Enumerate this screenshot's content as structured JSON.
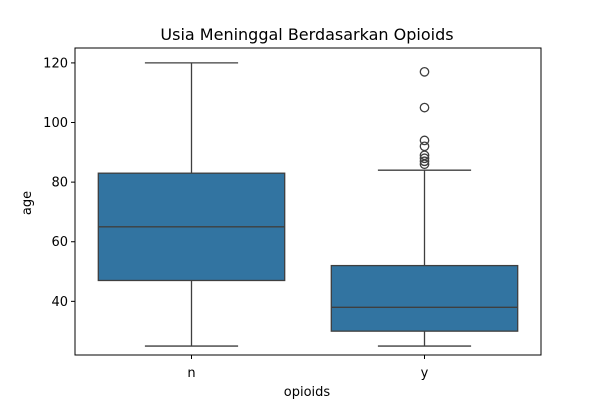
{
  "chart_data": {
    "type": "box",
    "title": "Usia Meninggal Berdasarkan Opioids",
    "xlabel": "opioids",
    "ylabel": "age",
    "categories": [
      "n",
      "y"
    ],
    "ylim": [
      22,
      125
    ],
    "yticks": [
      40,
      60,
      80,
      100,
      120
    ],
    "grid": false,
    "box_color": "#3274a1",
    "line_color": "#3f3f3f",
    "boxes": [
      {
        "category": "n",
        "whisker_low": 25,
        "q1": 47,
        "median": 65,
        "q3": 83,
        "whisker_high": 120,
        "outliers": []
      },
      {
        "category": "y",
        "whisker_low": 25,
        "q1": 30,
        "median": 38,
        "q3": 52,
        "whisker_high": 84,
        "outliers": [
          86,
          87,
          88,
          89,
          92,
          94,
          105,
          117
        ]
      }
    ]
  }
}
